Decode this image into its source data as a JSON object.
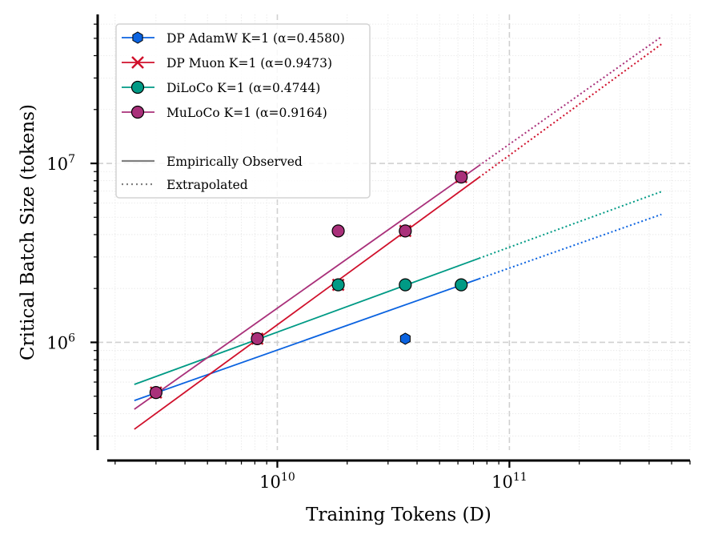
{
  "chart_data": {
    "type": "scatter",
    "title": "",
    "xlabel": "Training Tokens (D)",
    "ylabel": "Critical Batch Size (tokens)",
    "xscale": "log",
    "yscale": "log",
    "xlim": [
      1850000000.0,
      600000000000.0
    ],
    "ylim": [
      250000.0,
      68000000.0
    ],
    "x_ticks": [
      {
        "value": 10000000000.0,
        "label_base": "10",
        "label_exp": "10"
      },
      {
        "value": 100000000000.0,
        "label_base": "10",
        "label_exp": "11"
      }
    ],
    "y_ticks": [
      {
        "value": 1000000.0,
        "label_base": "10",
        "label_exp": "6"
      },
      {
        "value": 10000000.0,
        "label_base": "10",
        "label_exp": "7"
      }
    ],
    "grid": "major dashed, minor dotted",
    "legend_position": "top-left",
    "series": [
      {
        "name": "DP AdamW K=1 (α=0.4580)",
        "color": "#0b63e0",
        "marker": "hexagon",
        "alpha": 0.458,
        "points": [
          [
            35600000000.0,
            1048576
          ]
        ],
        "fit": {
          "x_start": 2420000000.0,
          "y_at_start": 473000.0,
          "observed_until": 74000000000.0,
          "extrapolated_until": 452000000000.0
        }
      },
      {
        "name": "DP Muon K=1 (α=0.9473)",
        "color": "#d0102b",
        "marker": "x",
        "alpha": 0.9473,
        "points": [
          [
            3000000000.0,
            524288
          ],
          [
            8200000000.0,
            1048576
          ],
          [
            18300000000.0,
            2097152
          ],
          [
            35600000000.0,
            4194304
          ],
          [
            62000000000.0,
            8388608
          ]
        ],
        "fit": {
          "x_start": 2420000000.0,
          "y_at_start": 327000.0,
          "observed_until": 74000000000.0,
          "extrapolated_until": 452000000000.0
        }
      },
      {
        "name": "DiLoCo K=1 (α=0.4744)",
        "color": "#009a85",
        "marker": "circle",
        "alpha": 0.4744,
        "points": [
          [
            18300000000.0,
            2097152
          ],
          [
            35600000000.0,
            2097152
          ],
          [
            62000000000.0,
            2097152
          ]
        ],
        "fit": {
          "x_start": 2420000000.0,
          "y_at_start": 582000.0,
          "observed_until": 74000000000.0,
          "extrapolated_until": 452000000000.0
        }
      },
      {
        "name": "MuLoCo K=1 (α=0.9164)",
        "color": "#a9307a",
        "marker": "circle",
        "alpha": 0.9164,
        "points": [
          [
            3000000000.0,
            524288
          ],
          [
            8200000000.0,
            1048576
          ],
          [
            18300000000.0,
            4194304
          ],
          [
            35600000000.0,
            4194304
          ],
          [
            62000000000.0,
            8388608
          ]
        ],
        "fit": {
          "x_start": 2420000000.0,
          "y_at_start": 423000.0,
          "observed_until": 74000000000.0,
          "extrapolated_until": 452000000000.0
        }
      }
    ],
    "legend": {
      "style_entries": [
        {
          "label": "Empirically Observed",
          "linestyle": "solid",
          "color": "#808080"
        },
        {
          "label": "Extrapolated",
          "linestyle": "dotted",
          "color": "#808080"
        }
      ]
    }
  }
}
